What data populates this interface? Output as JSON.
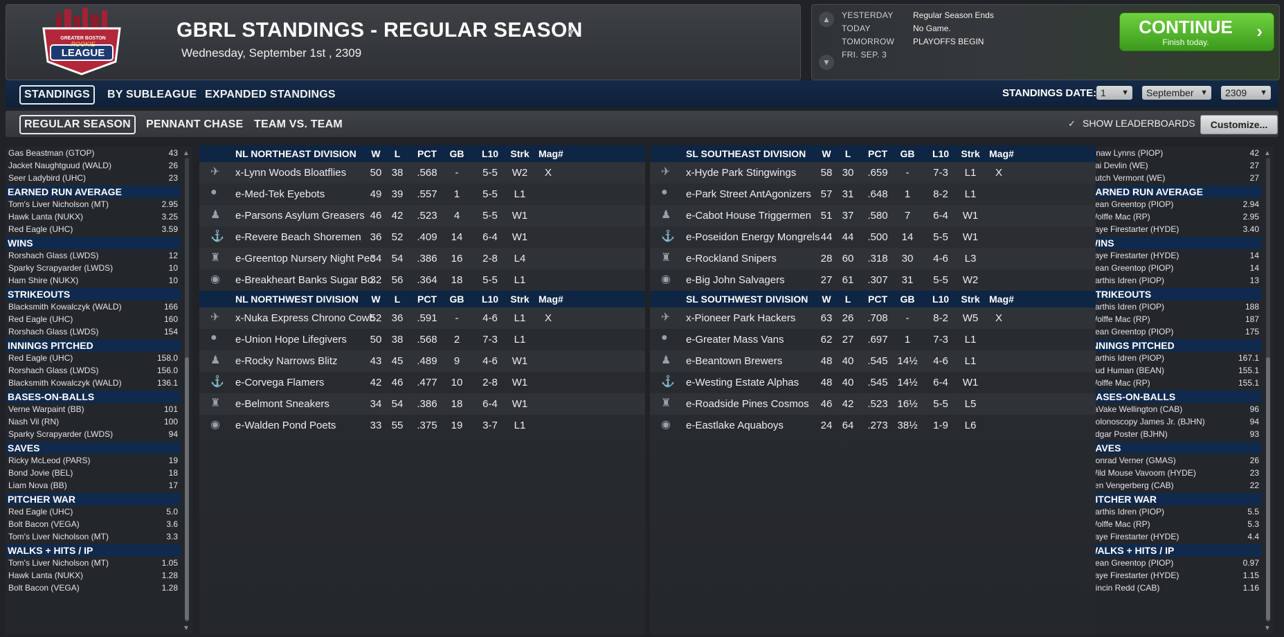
{
  "header": {
    "title": "GBRL STANDINGS - REGULAR SEASON",
    "date": "Wednesday, September 1st , 2309",
    "logo_top": "GREATER BOSTON",
    "logo_mid": "ROOKIE",
    "logo_bot": "LEAGUE"
  },
  "calendar": {
    "rows": [
      {
        "label": "YESTERDAY",
        "value": "Regular Season Ends"
      },
      {
        "label": "TODAY",
        "value": "No Game."
      },
      {
        "label": "TOMORROW",
        "value": "PLAYOFFS BEGIN"
      },
      {
        "label": "FRI. SEP. 3",
        "value": ""
      }
    ],
    "continue_label": "CONTINUE",
    "continue_sub": "Finish today."
  },
  "tabs1": [
    "STANDINGS",
    "BY SUBLEAGUE",
    "EXPANDED STANDINGS"
  ],
  "tabs2": [
    "REGULAR SEASON",
    "PENNANT CHASE",
    "TEAM VS. TEAM"
  ],
  "standings_date": {
    "label": "STANDINGS DATE:",
    "day": "1",
    "month": "September",
    "year": "2309"
  },
  "show_leaderboards": "SHOW LEADERBOARDS",
  "customize": "Customize...",
  "columns": [
    "W",
    "L",
    "PCT",
    "GB",
    "L10",
    "Strk",
    "Mag#"
  ],
  "divisions_left": [
    {
      "name": "NL NORTHEAST DIVISION",
      "teams": [
        {
          "name": "x-Lynn Woods Bloatflies",
          "w": "50",
          "l": "38",
          "pct": ".568",
          "gb": "-",
          "l10": "5-5",
          "strk": "W2",
          "mag": "X"
        },
        {
          "name": "e-Med-Tek Eyebots",
          "w": "49",
          "l": "39",
          "pct": ".557",
          "gb": "1",
          "l10": "5-5",
          "strk": "L1",
          "mag": ""
        },
        {
          "name": "e-Parsons Asylum Greasers",
          "w": "46",
          "l": "42",
          "pct": ".523",
          "gb": "4",
          "l10": "5-5",
          "strk": "W1",
          "mag": ""
        },
        {
          "name": "e-Revere Beach Shoremen",
          "w": "36",
          "l": "52",
          "pct": ".409",
          "gb": "14",
          "l10": "6-4",
          "strk": "W1",
          "mag": ""
        },
        {
          "name": "e-Greentop Nursery Night Peo",
          "w": "34",
          "l": "54",
          "pct": ".386",
          "gb": "16",
          "l10": "2-8",
          "strk": "L4",
          "mag": ""
        },
        {
          "name": "e-Breakheart Banks Sugar Bon",
          "w": "32",
          "l": "56",
          "pct": ".364",
          "gb": "18",
          "l10": "5-5",
          "strk": "L1",
          "mag": ""
        }
      ]
    },
    {
      "name": "NL NORTHWEST DIVISION",
      "teams": [
        {
          "name": "x-Nuka Express Chrono Cowb",
          "w": "52",
          "l": "36",
          "pct": ".591",
          "gb": "-",
          "l10": "4-6",
          "strk": "L1",
          "mag": "X"
        },
        {
          "name": "e-Union Hope Lifegivers",
          "w": "50",
          "l": "38",
          "pct": ".568",
          "gb": "2",
          "l10": "7-3",
          "strk": "L1",
          "mag": ""
        },
        {
          "name": "e-Rocky Narrows Blitz",
          "w": "43",
          "l": "45",
          "pct": ".489",
          "gb": "9",
          "l10": "4-6",
          "strk": "W1",
          "mag": ""
        },
        {
          "name": "e-Corvega Flamers",
          "w": "42",
          "l": "46",
          "pct": ".477",
          "gb": "10",
          "l10": "2-8",
          "strk": "W1",
          "mag": ""
        },
        {
          "name": "e-Belmont Sneakers",
          "w": "34",
          "l": "54",
          "pct": ".386",
          "gb": "18",
          "l10": "6-4",
          "strk": "W1",
          "mag": ""
        },
        {
          "name": "e-Walden Pond Poets",
          "w": "33",
          "l": "55",
          "pct": ".375",
          "gb": "19",
          "l10": "3-7",
          "strk": "L1",
          "mag": ""
        }
      ]
    }
  ],
  "divisions_right": [
    {
      "name": "SL SOUTHEAST DIVISION",
      "teams": [
        {
          "name": "x-Hyde Park Stingwings",
          "w": "58",
          "l": "30",
          "pct": ".659",
          "gb": "-",
          "l10": "7-3",
          "strk": "L1",
          "mag": "X"
        },
        {
          "name": "e-Park Street AntAgonizers",
          "w": "57",
          "l": "31",
          "pct": ".648",
          "gb": "1",
          "l10": "8-2",
          "strk": "L1",
          "mag": ""
        },
        {
          "name": "e-Cabot House Triggermen",
          "w": "51",
          "l": "37",
          "pct": ".580",
          "gb": "7",
          "l10": "6-4",
          "strk": "W1",
          "mag": ""
        },
        {
          "name": "e-Poseidon Energy Mongrels",
          "w": "44",
          "l": "44",
          "pct": ".500",
          "gb": "14",
          "l10": "5-5",
          "strk": "W1",
          "mag": ""
        },
        {
          "name": "e-Rockland Snipers",
          "w": "28",
          "l": "60",
          "pct": ".318",
          "gb": "30",
          "l10": "4-6",
          "strk": "L3",
          "mag": ""
        },
        {
          "name": "e-Big John Salvagers",
          "w": "27",
          "l": "61",
          "pct": ".307",
          "gb": "31",
          "l10": "5-5",
          "strk": "W2",
          "mag": ""
        }
      ]
    },
    {
      "name": "SL SOUTHWEST DIVISION",
      "teams": [
        {
          "name": "x-Pioneer Park Hackers",
          "w": "63",
          "l": "26",
          "pct": ".708",
          "gb": "-",
          "l10": "8-2",
          "strk": "W5",
          "mag": "X"
        },
        {
          "name": "e-Greater Mass Vans",
          "w": "62",
          "l": "27",
          "pct": ".697",
          "gb": "1",
          "l10": "7-3",
          "strk": "L1",
          "mag": ""
        },
        {
          "name": "e-Beantown Brewers",
          "w": "48",
          "l": "40",
          "pct": ".545",
          "gb": "14½",
          "l10": "4-6",
          "strk": "L1",
          "mag": ""
        },
        {
          "name": "e-Westing Estate Alphas",
          "w": "48",
          "l": "40",
          "pct": ".545",
          "gb": "14½",
          "l10": "6-4",
          "strk": "W1",
          "mag": ""
        },
        {
          "name": "e-Roadside Pines Cosmos",
          "w": "46",
          "l": "42",
          "pct": ".523",
          "gb": "16½",
          "l10": "5-5",
          "strk": "L5",
          "mag": ""
        },
        {
          "name": "e-Eastlake Aquaboys",
          "w": "24",
          "l": "64",
          "pct": ".273",
          "gb": "38½",
          "l10": "1-9",
          "strk": "L6",
          "mag": ""
        }
      ]
    }
  ],
  "leaders_left": [
    {
      "category": "",
      "rows": [
        [
          "Gas Beastman (GTOP)",
          "43"
        ],
        [
          "Jacket Naughtguud (WALD)",
          "26"
        ],
        [
          "Seer Ladybird (UHC)",
          "23"
        ]
      ]
    },
    {
      "category": "EARNED RUN AVERAGE",
      "rows": [
        [
          "Tom's Liver Nicholson (MT)",
          "2.95"
        ],
        [
          "Hawk Lanta (NUKX)",
          "3.25"
        ],
        [
          "Red Eagle (UHC)",
          "3.59"
        ]
      ]
    },
    {
      "category": "WINS",
      "rows": [
        [
          "Rorshach Glass (LWDS)",
          "12"
        ],
        [
          "Sparky Scrapyarder (LWDS)",
          "10"
        ],
        [
          "Ham Shire (NUKX)",
          "10"
        ]
      ]
    },
    {
      "category": "STRIKEOUTS",
      "rows": [
        [
          "Blacksmith Kowalczyk (WALD)",
          "166"
        ],
        [
          "Red Eagle (UHC)",
          "160"
        ],
        [
          "Rorshach Glass (LWDS)",
          "154"
        ]
      ]
    },
    {
      "category": "INNINGS PITCHED",
      "rows": [
        [
          "Red Eagle (UHC)",
          "158.0"
        ],
        [
          "Rorshach Glass (LWDS)",
          "156.0"
        ],
        [
          "Blacksmith Kowalczyk (WALD)",
          "136.1"
        ]
      ]
    },
    {
      "category": "BASES-ON-BALLS",
      "rows": [
        [
          "Verne Warpaint (BB)",
          "101"
        ],
        [
          "Nash Vil (RN)",
          "100"
        ],
        [
          "Sparky Scrapyarder (LWDS)",
          "94"
        ]
      ]
    },
    {
      "category": "SAVES",
      "rows": [
        [
          "Ricky McLeod (PARS)",
          "19"
        ],
        [
          "Bond Jovie (BEL)",
          "18"
        ],
        [
          "Liam Nova (BB)",
          "17"
        ]
      ]
    },
    {
      "category": "PITCHER WAR",
      "rows": [
        [
          "Red Eagle (UHC)",
          "5.0"
        ],
        [
          "Bolt Bacon (VEGA)",
          "3.6"
        ],
        [
          "Tom's Liver Nicholson (MT)",
          "3.3"
        ]
      ]
    },
    {
      "category": "WALKS + HITS / IP",
      "rows": [
        [
          "Tom's Liver Nicholson (MT)",
          "1.05"
        ],
        [
          "Hawk Lanta (NUKX)",
          "1.28"
        ],
        [
          "Bolt Bacon (VEGA)",
          "1.28"
        ]
      ]
    }
  ],
  "leaders_right": [
    {
      "category": "",
      "rows": [
        [
          "Gnaw Lynns (PIOP)",
          "42"
        ],
        [
          "Kai Devlin (WE)",
          "27"
        ],
        [
          "Butch Vermont (WE)",
          "27"
        ]
      ]
    },
    {
      "category": "EARNED RUN AVERAGE",
      "rows": [
        [
          "Sean Greentop (PIOP)",
          "2.94"
        ],
        [
          "Wolffe Mac (RP)",
          "2.95"
        ],
        [
          "Faye Firestarter (HYDE)",
          "3.40"
        ]
      ]
    },
    {
      "category": "WINS",
      "rows": [
        [
          "Faye Firestarter (HYDE)",
          "14"
        ],
        [
          "Sean Greentop (PIOP)",
          "14"
        ],
        [
          "Sarthis Idren (PIOP)",
          "13"
        ]
      ]
    },
    {
      "category": "STRIKEOUTS",
      "rows": [
        [
          "Sarthis Idren (PIOP)",
          "188"
        ],
        [
          "Wolffe Mac (RP)",
          "187"
        ],
        [
          "Sean Greentop (PIOP)",
          "175"
        ]
      ]
    },
    {
      "category": "INNINGS PITCHED",
      "rows": [
        [
          "Sarthis Idren (PIOP)",
          "167.1"
        ],
        [
          "Dud Human (BEAN)",
          "155.1"
        ],
        [
          "Wolffe Mac (RP)",
          "155.1"
        ]
      ]
    },
    {
      "category": "BASES-ON-BALLS",
      "rows": [
        [
          "JaVake Wellington (CAB)",
          "96"
        ],
        [
          "Colonoscopy James Jr. (BJHN)",
          "94"
        ],
        [
          "Edgar Poster (BJHN)",
          "93"
        ]
      ]
    },
    {
      "category": "SAVES",
      "rows": [
        [
          "Conrad Verner (GMAS)",
          "26"
        ],
        [
          "Wild Mouse Vavoom (HYDE)",
          "23"
        ],
        [
          "Yen Vengerberg (CAB)",
          "22"
        ]
      ]
    },
    {
      "category": "PITCHER WAR",
      "rows": [
        [
          "Sarthis Idren (PIOP)",
          "5.5"
        ],
        [
          "Wolffe Mac (RP)",
          "5.3"
        ],
        [
          "Faye Firestarter (HYDE)",
          "4.4"
        ]
      ]
    },
    {
      "category": "WALKS + HITS / IP",
      "rows": [
        [
          "Sean Greentop (PIOP)",
          "0.97"
        ],
        [
          "Faye Firestarter (HYDE)",
          "1.15"
        ],
        [
          "Cincin Redd (CAB)",
          "1.16"
        ]
      ]
    }
  ],
  "colors": {
    "accent_green": "#4fb82a",
    "navy_header": "#0e2544",
    "bg": "#202226"
  }
}
